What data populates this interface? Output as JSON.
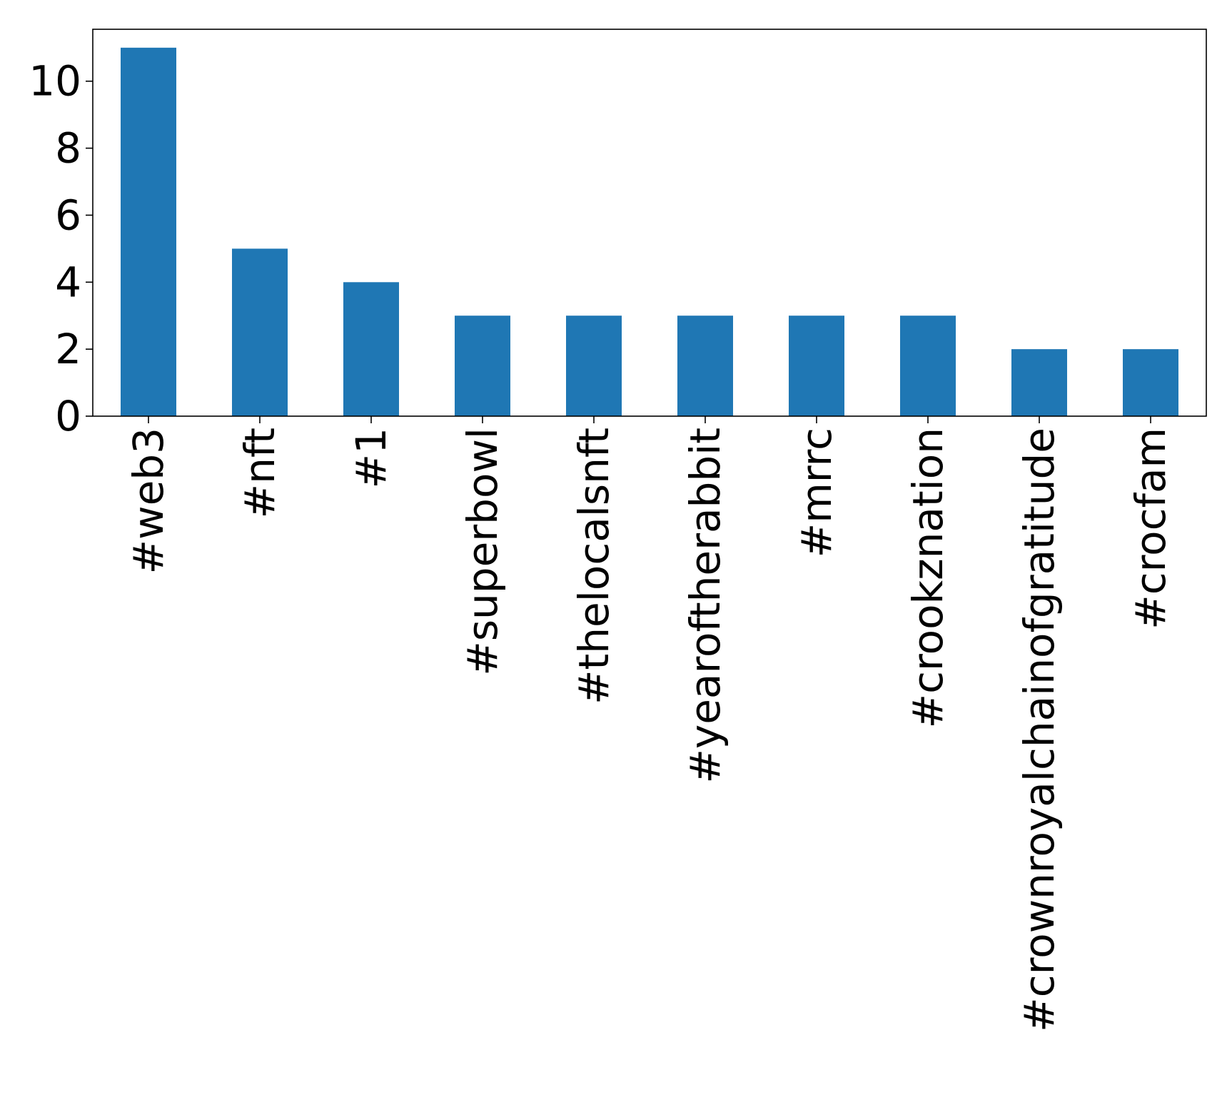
{
  "chart_data": {
    "type": "bar",
    "title": "",
    "xlabel": "",
    "ylabel": "",
    "categories": [
      "#web3",
      "#nft",
      "#1",
      "#superbowl",
      "#thelocalsnft",
      "#yearoftherabbit",
      "#mrrc",
      "#crookznation",
      "#crownroyalchainofgratitude",
      "#crocfam"
    ],
    "values": [
      11,
      5,
      4,
      3,
      3,
      3,
      3,
      3,
      2,
      2
    ],
    "ylim": [
      0,
      11.55
    ],
    "yticks": [
      0,
      2,
      4,
      6,
      8,
      10
    ],
    "ytick_labels": [
      "0",
      "2",
      "4",
      "6",
      "8",
      "10"
    ],
    "bar_color": "#1f77b4",
    "grid": false,
    "legend": "none"
  }
}
